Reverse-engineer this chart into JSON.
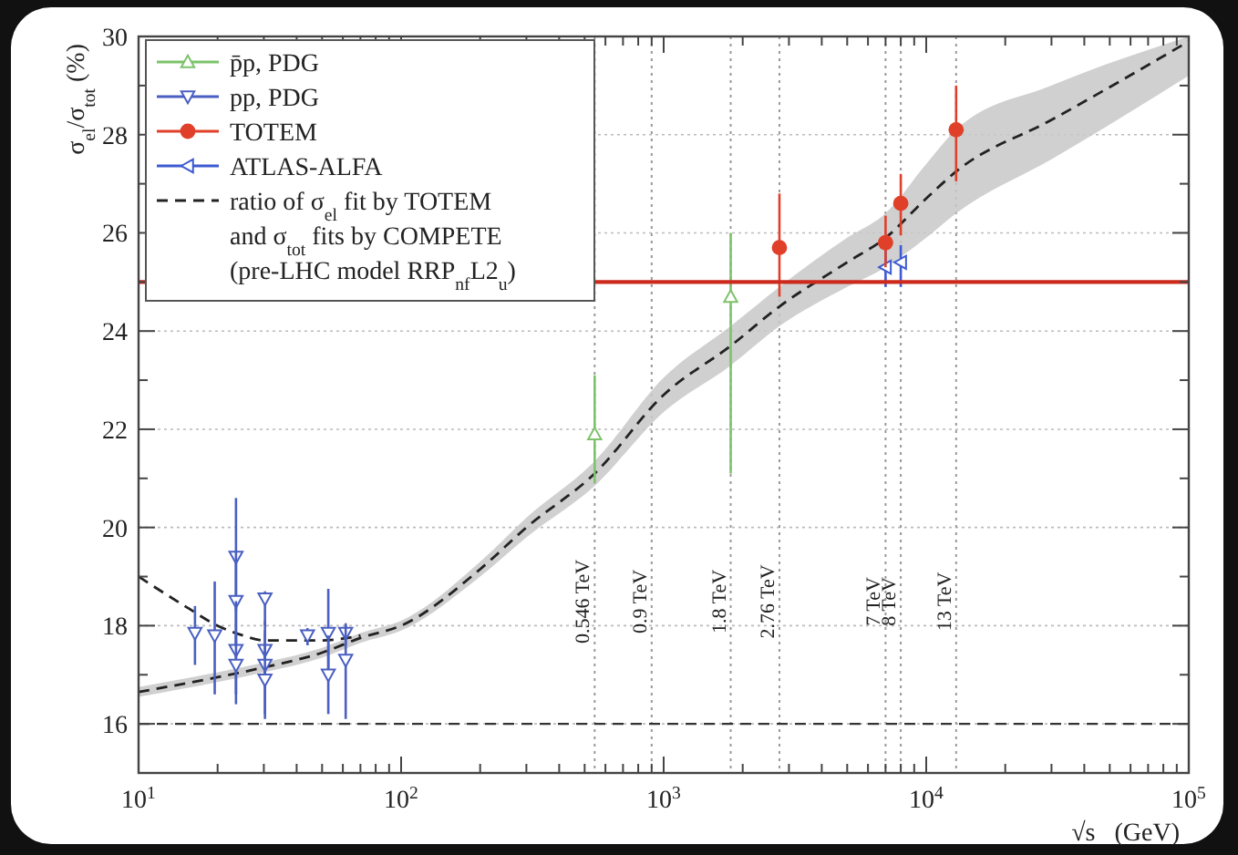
{
  "chart_data": {
    "type": "scatter",
    "xlabel": "√s   (GeV)",
    "ylabel": "σ$_{el}$/σ$_{tot}$   (%)",
    "log": "x",
    "grid": "y",
    "legend": "top left",
    "xlim": [
      10,
      100000
    ],
    "ylim": [
      15,
      30
    ],
    "xticks": [
      {
        "value": 10,
        "label": "10$^{1}$"
      },
      {
        "value": 20,
        "label": null
      },
      {
        "value": 30,
        "label": null
      },
      {
        "value": 40,
        "label": null
      },
      {
        "value": 50,
        "label": null
      },
      {
        "value": 60,
        "label": null
      },
      {
        "value": 70,
        "label": null
      },
      {
        "value": 80,
        "label": null
      },
      {
        "value": 90,
        "label": null
      },
      {
        "value": 100,
        "label": "10$^{2}$"
      },
      {
        "value": 200,
        "label": null
      },
      {
        "value": 300,
        "label": null
      },
      {
        "value": 400,
        "label": null
      },
      {
        "value": 500,
        "label": null
      },
      {
        "value": 600,
        "label": null
      },
      {
        "value": 700,
        "label": null
      },
      {
        "value": 800,
        "label": null
      },
      {
        "value": 900,
        "label": null
      },
      {
        "value": 1000,
        "label": "10$^{3}$"
      },
      {
        "value": 2000,
        "label": null
      },
      {
        "value": 3000,
        "label": null
      },
      {
        "value": 4000,
        "label": null
      },
      {
        "value": 5000,
        "label": null
      },
      {
        "value": 6000,
        "label": null
      },
      {
        "value": 7000,
        "label": null
      },
      {
        "value": 8000,
        "label": null
      },
      {
        "value": 9000,
        "label": null
      },
      {
        "value": 10000,
        "label": "10$^{4}$"
      },
      {
        "value": 20000,
        "label": null
      },
      {
        "value": 30000,
        "label": null
      },
      {
        "value": 40000,
        "label": null
      },
      {
        "value": 50000,
        "label": null
      },
      {
        "value": 60000,
        "label": null
      },
      {
        "value": 70000,
        "label": null
      },
      {
        "value": 80000,
        "label": null
      },
      {
        "value": 90000,
        "label": null
      },
      {
        "value": 100000,
        "label": "10$^{5}$"
      }
    ],
    "yticks": [
      {
        "value": 15,
        "label": null
      },
      16,
      {
        "value": 17,
        "label": null
      },
      18,
      {
        "value": 19,
        "label": null
      },
      20,
      {
        "value": 21,
        "label": null
      },
      22,
      {
        "value": 23,
        "label": null
      },
      24,
      {
        "value": 25,
        "label": null
      },
      26,
      {
        "value": 27,
        "label": null
      },
      28,
      {
        "value": 29,
        "label": null
      },
      30
    ],
    "series": [
      {
        "name": "p̄p, PDG",
        "marker": "triangle",
        "color": "#7dc36b",
        "x": [
          546,
          1800
        ],
        "values": [
          21.9,
          24.7
        ],
        "errors": [
          [
            20.9,
            23.1
          ],
          [
            21.1,
            26.0
          ]
        ]
      },
      {
        "name": "pp, PDG",
        "marker": "triangle-down",
        "color": "#4a5fc1",
        "x": [
          16.4,
          19.5,
          23.5,
          23.5,
          23.5,
          23.5,
          30.3,
          30.3,
          30.3,
          30.3,
          44,
          52.8,
          52.8,
          61.5,
          61.5
        ],
        "values": [
          17.85,
          17.8,
          19.4,
          18.5,
          17.5,
          17.2,
          18.55,
          17.5,
          17.2,
          16.9,
          17.8,
          17.85,
          17.0,
          17.85,
          17.3
        ],
        "errors": [
          [
            17.2,
            18.4
          ],
          [
            16.6,
            18.9
          ],
          [
            18.3,
            20.6
          ],
          [
            17.5,
            19.5
          ],
          [
            16.4,
            18.5
          ],
          [
            16.6,
            17.8
          ],
          [
            18.0,
            18.7
          ],
          [
            16.9,
            18.1
          ],
          [
            16.1,
            17.9
          ],
          [
            16.2,
            17.6
          ],
          [
            17.6,
            17.95
          ],
          [
            16.9,
            18.75
          ],
          [
            16.2,
            17.8
          ],
          [
            17.6,
            18.05
          ],
          [
            16.1,
            18.0
          ]
        ]
      },
      {
        "name": "TOTEM",
        "marker": "circle",
        "color": "#e0402a",
        "x": [
          2760,
          7000,
          8000,
          13000
        ],
        "values": [
          25.7,
          25.8,
          26.6,
          28.1
        ],
        "errors": [
          [
            24.7,
            26.8
          ],
          [
            25.3,
            26.35
          ],
          [
            25.95,
            27.2
          ],
          [
            27.05,
            29.0
          ]
        ]
      },
      {
        "name": "ATLAS-ALFA",
        "marker": "triangle-left",
        "color": "#3d5ad0",
        "x": [
          7000,
          8000
        ],
        "values": [
          25.3,
          25.4
        ],
        "errors": [
          [
            24.9,
            25.75
          ],
          [
            24.9,
            25.75
          ]
        ]
      },
      {
        "name": "ratio of σ$_{el}$ fit by TOTEM and σ$_{tot}$ fits by COMPETE (pre-LHC model RRP$_{nf}$L2$_{u}$)",
        "type": "line",
        "marker": "none",
        "line_style": "dashed",
        "color": "#222222",
        "x": [
          10,
          20,
          30,
          50,
          70,
          100,
          200,
          300,
          546,
          1000,
          1800,
          2760,
          5000,
          7000,
          10000,
          13000,
          30000,
          100000
        ],
        "values": [
          16.65,
          16.95,
          17.15,
          17.45,
          17.75,
          18.0,
          19.15,
          20.0,
          21.1,
          22.7,
          23.7,
          24.5,
          25.4,
          25.9,
          26.7,
          27.25,
          28.3,
          29.9
        ],
        "lower": [
          16.55,
          16.85,
          17.05,
          17.35,
          17.65,
          17.9,
          19.0,
          19.8,
          20.85,
          22.35,
          23.3,
          24.1,
          24.9,
          25.3,
          25.9,
          26.4,
          27.5,
          29.2
        ],
        "upper": [
          16.75,
          17.05,
          17.25,
          17.55,
          17.85,
          18.1,
          19.3,
          20.2,
          21.35,
          23.05,
          24.1,
          24.9,
          25.9,
          26.4,
          27.4,
          28.1,
          29.0,
          30.0
        ]
      },
      {
        "type": "line",
        "marker": "none",
        "line_style": "dashed",
        "color": "#222222",
        "x": [
          10,
          15,
          20,
          25,
          30,
          40,
          50,
          70
        ],
        "values": [
          19.0,
          18.4,
          18.0,
          17.8,
          17.7,
          17.7,
          17.7,
          17.8
        ]
      }
    ],
    "ref_lines": [
      {
        "axis": "y",
        "value": 16,
        "color": "#333333",
        "line_style": "dashed"
      },
      {
        "axis": "y",
        "value": 25,
        "color": "#cc2a1c",
        "line_style": "solid"
      },
      {
        "axis": "x",
        "value": 546,
        "label": "0.546 TeV",
        "color": "#999999",
        "line_style": "dotted"
      },
      {
        "axis": "x",
        "value": 900,
        "label": "0.9 TeV",
        "color": "#999999",
        "line_style": "dotted"
      },
      {
        "axis": "x",
        "value": 1800,
        "label": "1.8 TeV",
        "color": "#999999",
        "line_style": "dotted"
      },
      {
        "axis": "x",
        "value": 2760,
        "label": "2.76 TeV",
        "color": "#999999",
        "line_style": "dotted"
      },
      {
        "axis": "x",
        "value": 7000,
        "label": "7 TeV",
        "color": "#999999",
        "line_style": "dotted"
      },
      {
        "axis": "x",
        "value": 8000,
        "label": "8 TeV",
        "color": "#999999",
        "line_style": "dotted"
      },
      {
        "axis": "x",
        "value": 13000,
        "label": "13 TeV",
        "color": "#999999",
        "line_style": "dotted"
      }
    ]
  }
}
